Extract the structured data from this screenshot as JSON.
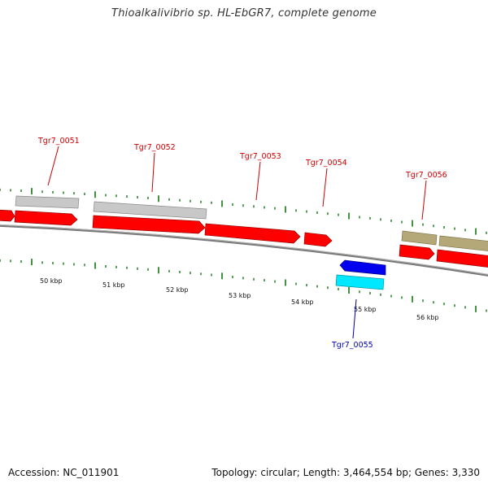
{
  "title": "Thioalkalivibrio sp. HL-EbGR7, complete genome",
  "footer": {
    "accession": "Accession: NC_011901",
    "topology": "Topology: circular; Length: 3,464,554 bp; Genes: 3,330"
  },
  "colors": {
    "gene_forward": "#ff0000",
    "gene_reverse": "#0000ee",
    "feature_gray": "#c8c8c8",
    "feature_khaki": "#b4a878",
    "feature_cyan": "#00e8ff",
    "tick_green": "#117711",
    "backbone": "#888888",
    "label_forward": "#cc0000",
    "label_reverse": "#0000aa"
  },
  "scale_labels": [
    "50 kbp",
    "51 kbp",
    "52 kbp",
    "53 kbp",
    "54 kbp",
    "55 kbp",
    "56 kbp"
  ],
  "gene_labels": [
    {
      "text": "Tgr7_0051",
      "strand": "forward"
    },
    {
      "text": "Tgr7_0052",
      "strand": "forward"
    },
    {
      "text": "Tgr7_0053",
      "strand": "forward"
    },
    {
      "text": "Tgr7_0054",
      "strand": "forward"
    },
    {
      "text": "Tgr7_0055",
      "strand": "reverse"
    },
    {
      "text": "Tgr7_0056",
      "strand": "forward"
    }
  ]
}
